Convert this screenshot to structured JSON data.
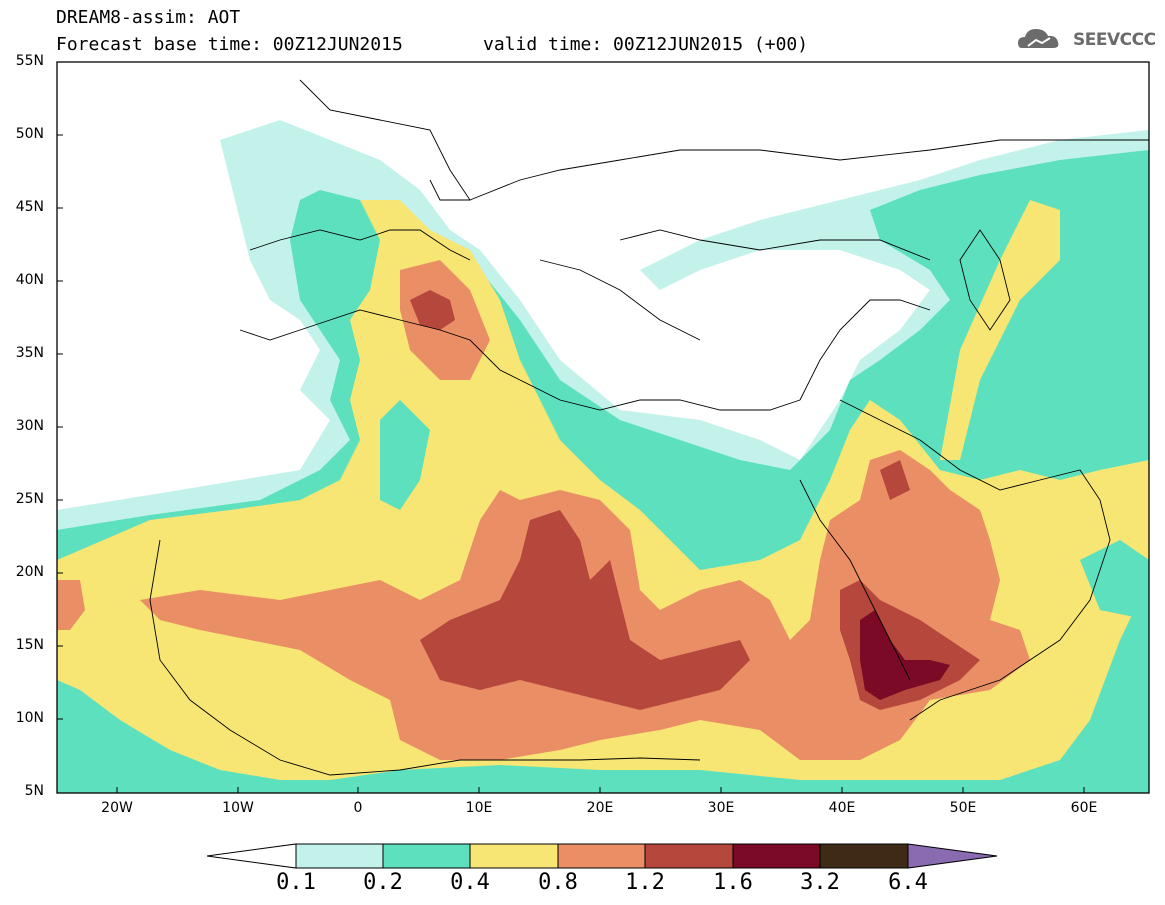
{
  "header": {
    "line1": "DREAM8-assim: AOT",
    "line2": "Forecast base time: 00Z12JUN2015",
    "valid": "valid time: 00Z12JUN2015 (+00)"
  },
  "logo": {
    "text": "SEEVCCC",
    "icon": "cloud-icon"
  },
  "map": {
    "variable": "AOT",
    "extent": {
      "lon": [
        -25,
        65
      ],
      "lat": [
        5,
        55
      ]
    },
    "lat_ticks": [
      "55N",
      "50N",
      "45N",
      "40N",
      "35N",
      "30N",
      "25N",
      "20N",
      "15N",
      "10N",
      "5N"
    ],
    "lon_ticks": [
      "20W",
      "10W",
      "0",
      "10E",
      "20E",
      "30E",
      "40E",
      "50E",
      "60E"
    ]
  },
  "colorbar": {
    "levels": [
      "0.1",
      "0.2",
      "0.4",
      "0.8",
      "1.2",
      "1.6",
      "3.2",
      "6.4"
    ],
    "colors": [
      "#ffffff",
      "#c2f2ea",
      "#5ce0bd",
      "#f7e674",
      "#ea8e66",
      "#b5473c",
      "#7a0a26",
      "#3f2a16",
      "#8a6ab0"
    ]
  }
}
